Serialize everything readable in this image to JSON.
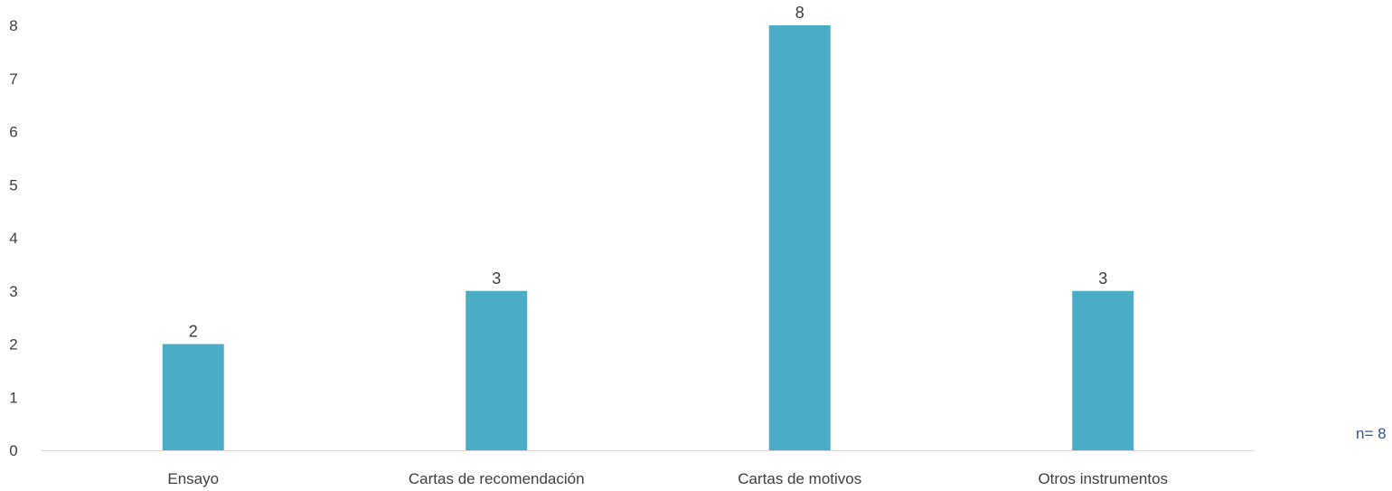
{
  "chart_data": {
    "type": "bar",
    "categories": [
      "Ensayo",
      "Cartas de recomendación",
      "Cartas de motivos",
      "Otros instrumentos"
    ],
    "values": [
      2,
      3,
      8,
      3
    ],
    "ylim": [
      0,
      8
    ],
    "yticks": [
      0,
      1,
      2,
      3,
      4,
      5,
      6,
      7,
      8
    ],
    "bar_color": "#4bacc6",
    "grid": false,
    "data_labels": true
  },
  "note": "n= 8"
}
